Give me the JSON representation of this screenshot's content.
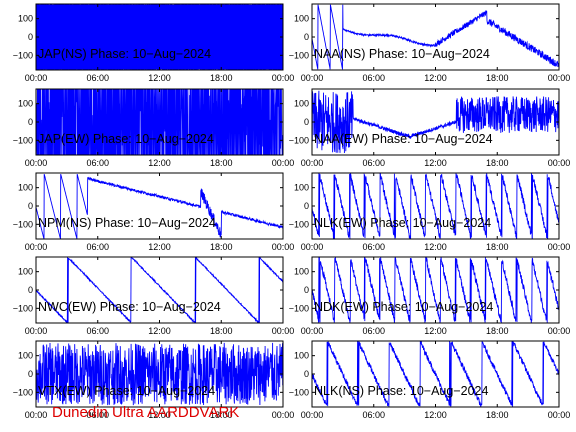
{
  "footer": {
    "text": "Dunedin Ultra AARDDVARK",
    "color": "#dd0000"
  },
  "colors": {
    "trace": "#0000ff",
    "axes": "#000000"
  },
  "chart_data": [
    {
      "type": "line",
      "title": "JAP(NS) Phase: 10−Aug−2024",
      "pattern": "fill",
      "xlim": [
        0,
        24
      ],
      "ylim": [
        -180,
        180
      ],
      "xticks": [
        "00:00",
        "06:00",
        "12:00",
        "18:00",
        "00:00"
      ],
      "yticks": [
        "100",
        "0",
        "−100"
      ]
    },
    {
      "type": "line",
      "title": "NAA(NS) Phase: 10−Aug−2024",
      "pattern": "naa_ns",
      "xlim": [
        0,
        24
      ],
      "ylim": [
        -180,
        180
      ],
      "xticks": [
        "00:00",
        "06:00",
        "12:00",
        "18:00",
        "00:00"
      ],
      "yticks": [
        "100",
        "0",
        "−100"
      ]
    },
    {
      "type": "line",
      "title": "JAP(EW) Phase: 10−Aug−2024",
      "pattern": "fill_gappy",
      "xlim": [
        0,
        24
      ],
      "ylim": [
        -180,
        180
      ],
      "xticks": [
        "00:00",
        "06:00",
        "12:00",
        "18:00",
        "00:00"
      ],
      "yticks": [
        "100",
        "0",
        "−100"
      ]
    },
    {
      "type": "line",
      "title": "NAA(EW) Phase: 10−Aug−2024",
      "pattern": "naa_ew",
      "xlim": [
        0,
        24
      ],
      "ylim": [
        -180,
        180
      ],
      "xticks": [
        "00:00",
        "06:00",
        "12:00",
        "18:00",
        "00:00"
      ],
      "yticks": [
        "100",
        "0",
        "−100"
      ]
    },
    {
      "type": "line",
      "title": "NPM(NS) Phase: 10−Aug−2024",
      "pattern": "npm_ns",
      "xlim": [
        0,
        24
      ],
      "ylim": [
        -180,
        180
      ],
      "xticks": [
        "00:00",
        "06:00",
        "12:00",
        "18:00",
        "00:00"
      ],
      "yticks": [
        "100",
        "0",
        "−100"
      ]
    },
    {
      "type": "line",
      "title": "NLK(EW) Phase: 10−Aug−2024",
      "pattern": "saw_dense",
      "xlim": [
        0,
        24
      ],
      "ylim": [
        -180,
        180
      ],
      "xticks": [
        "00:00",
        "06:00",
        "12:00",
        "18:00",
        "00:00"
      ],
      "yticks": [
        "100",
        "0",
        "−100"
      ]
    },
    {
      "type": "line",
      "title": "NWC(EW) Phase: 10−Aug−2024",
      "pattern": "saw_slow",
      "xlim": [
        0,
        24
      ],
      "ylim": [
        -180,
        180
      ],
      "xticks": [
        "00:00",
        "06:00",
        "12:00",
        "18:00",
        "00:00"
      ],
      "yticks": [
        "100",
        "0",
        "−100"
      ]
    },
    {
      "type": "line",
      "title": "NDK(EW) Phase: 10−Aug−2024",
      "pattern": "saw_dense",
      "xlim": [
        0,
        24
      ],
      "ylim": [
        -180,
        180
      ],
      "xticks": [
        "00:00",
        "06:00",
        "12:00",
        "18:00",
        "00:00"
      ],
      "yticks": [
        "100",
        "0",
        "−100"
      ]
    },
    {
      "type": "line",
      "title": "VTX(EW) Phase: 10−Aug−2024",
      "pattern": "noise",
      "xlim": [
        0,
        24
      ],
      "ylim": [
        -180,
        180
      ],
      "xticks": [
        "00:00",
        "06:00",
        "12:00",
        "18:00",
        "00:00"
      ],
      "yticks": [
        "100",
        "0",
        "−100"
      ]
    },
    {
      "type": "line",
      "title": "NLK(NS) Phase: 10−Aug−2024",
      "pattern": "saw_medium",
      "xlim": [
        0,
        24
      ],
      "ylim": [
        -180,
        180
      ],
      "xticks": [
        "00:00",
        "06:00",
        "12:00",
        "18:00",
        "00:00"
      ],
      "yticks": [
        "100",
        "0",
        "−100"
      ]
    }
  ]
}
